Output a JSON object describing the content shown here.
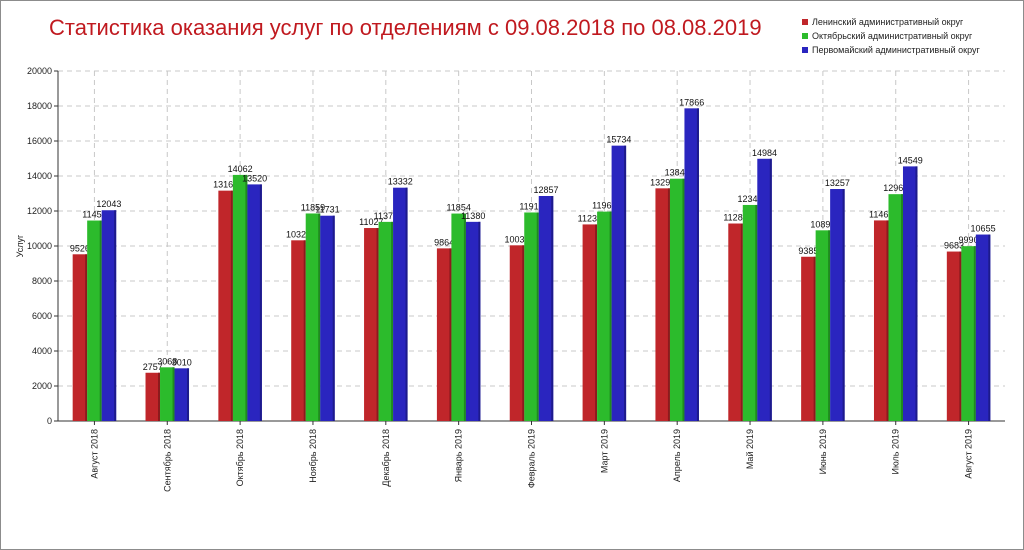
{
  "chart_data": {
    "type": "bar",
    "title": "Статистика оказания услуг по отделениям с 09.08.2018 по 08.08.2019",
    "xlabel": "",
    "ylabel": "Услуг",
    "ylim": [
      0,
      20000
    ],
    "yticks": [
      "0",
      "2000",
      "4000",
      "6000",
      "8000",
      "10000",
      "12000",
      "14000",
      "16000",
      "18000",
      "20000"
    ],
    "grid": true,
    "legend_position": "top-right",
    "categories": [
      "Август 2018",
      "Сентябрь 2018",
      "Октябрь 2018",
      "Ноябрь 2018",
      "Декабрь 2018",
      "Январь 2019",
      "Февраль 2019",
      "Март 2019",
      "Апрель 2019",
      "Май 2019",
      "Июнь 2019",
      "Июль 2019",
      "Август 2019"
    ],
    "series": [
      {
        "name": "Ленинский административный округ",
        "color": "#c0262a",
        "values": [
          9526,
          2757,
          13163,
          10325,
          11027,
          9864,
          10039,
          11233,
          13295,
          11285,
          9385,
          11462,
          9683
        ]
      },
      {
        "name": "Октябрьский административный округ",
        "color": "#2cbb2c",
        "values": [
          11455,
          3068,
          14062,
          11859,
          11379,
          11854,
          11916,
          11966,
          13845,
          12345,
          10896,
          12962,
          9990
        ]
      },
      {
        "name": "Первомайский административный округ",
        "color": "#2a25bf",
        "values": [
          12043,
          3010,
          13520,
          11731,
          13332,
          11380,
          12857,
          15734,
          17866,
          14984,
          13257,
          14549,
          10655
        ]
      }
    ]
  }
}
